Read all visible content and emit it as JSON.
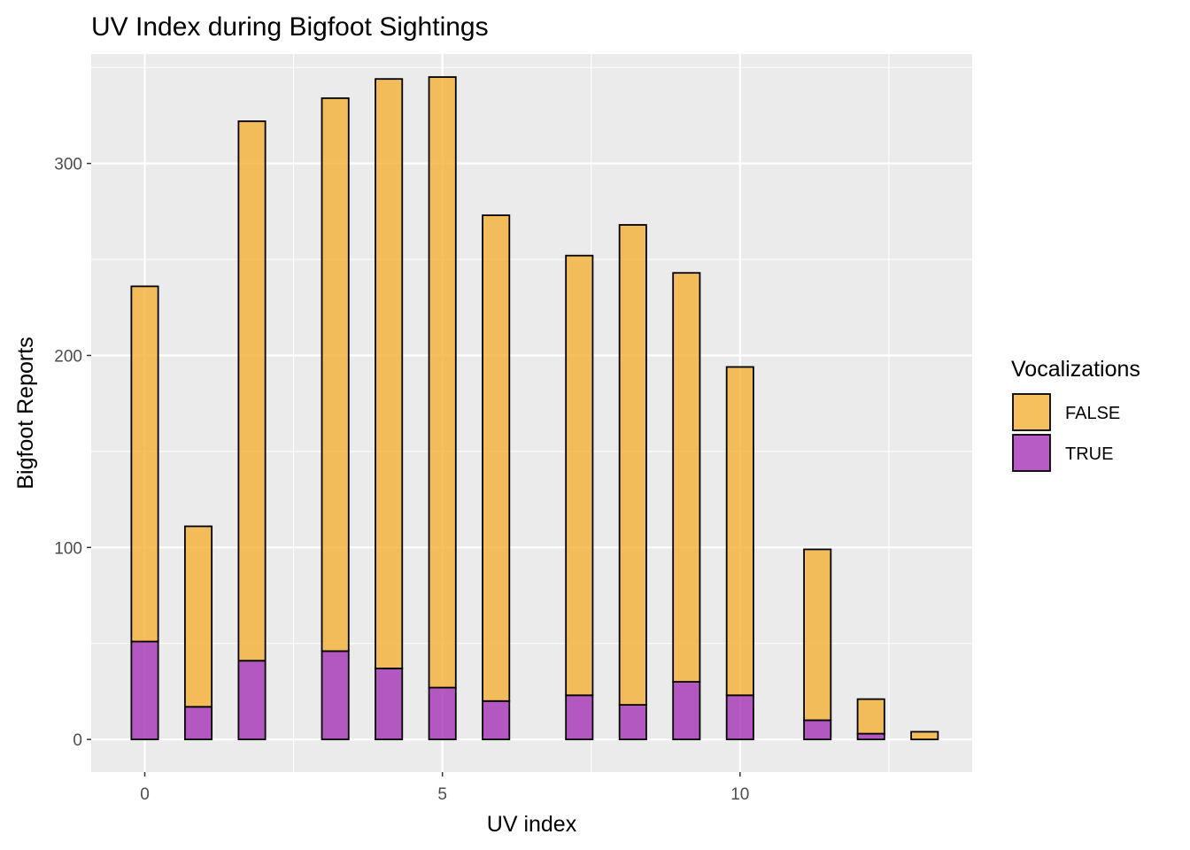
{
  "chart_data": {
    "type": "bar",
    "stacked": true,
    "title": "UV Index during Bigfoot Sightings",
    "xlabel": "UV index",
    "ylabel": "Bigfoot Reports",
    "xlim": [
      -0.9,
      13.9
    ],
    "ylim": [
      -17,
      357
    ],
    "x_ticks": [
      0,
      5,
      10
    ],
    "y_ticks": [
      0,
      100,
      200,
      300
    ],
    "x_tick_labels": [
      "0",
      "5",
      "10"
    ],
    "y_tick_labels": [
      "0",
      "100",
      "200",
      "300"
    ],
    "grid": true,
    "legend_position": "right",
    "legend_title": "Vocalizations",
    "bin_width": 0.45,
    "x": [
      0,
      0.9,
      1.8,
      3.2,
      4.1,
      5.0,
      5.9,
      7.3,
      8.2,
      9.1,
      10.0,
      11.3,
      12.2,
      13.1
    ],
    "series": [
      {
        "name": "FALSE",
        "color": "#f5b036",
        "values": [
          185,
          94,
          281,
          288,
          307,
          318,
          253,
          229,
          250,
          213,
          171,
          89,
          18,
          4
        ]
      },
      {
        "name": "TRUE",
        "color": "#a533b5",
        "values": [
          51,
          17,
          41,
          46,
          37,
          27,
          20,
          23,
          18,
          30,
          23,
          10,
          3,
          0
        ]
      }
    ]
  }
}
